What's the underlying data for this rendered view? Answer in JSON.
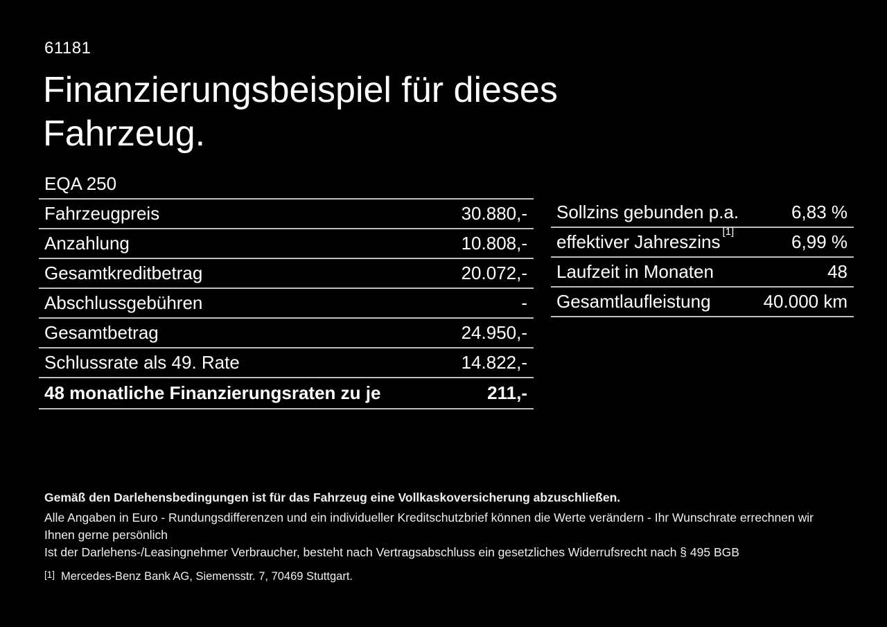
{
  "page": {
    "ref_number": "61181",
    "title": "Finanzierungsbeispiel für dieses Fahrzeug.",
    "model": "EQA 250"
  },
  "finance_table": {
    "rows": [
      {
        "label": "Fahrzeugpreis",
        "value": "30.880,-"
      },
      {
        "label": "Anzahlung",
        "value": "10.808,-"
      },
      {
        "label": "Gesamtkreditbetrag",
        "value": "20.072,-"
      },
      {
        "label": "Abschlussgebühren",
        "value": "-"
      },
      {
        "label": "Gesamtbetrag",
        "value": "24.950,-"
      },
      {
        "label": "Schlussrate als 49. Rate",
        "value": "14.822,-"
      },
      {
        "label": "48 monatliche Finanzierungsraten zu je",
        "value": "211,-"
      }
    ]
  },
  "conditions_table": {
    "rows": [
      {
        "label": "Sollzins gebunden p.a.",
        "value": "6,83 %"
      },
      {
        "label": "effektiver Jahreszins",
        "sup": "[1]",
        "value": "6,99 %"
      },
      {
        "label": "Laufzeit in Monaten",
        "value": "48"
      },
      {
        "label": "Gesamtlaufleistung",
        "value": "40.000 km"
      }
    ]
  },
  "footer": {
    "insurance_note": "Gemäß den Darlehensbedingungen ist für das Fahrzeug eine Vollkaskoversicherung abzuschließen.",
    "note_line1": "Alle Angaben in Euro - Rundungsdifferenzen und ein individueller Kreditschutzbrief können die Werte verändern - Ihr Wunschrate errechnen wir Ihnen gerne persönlich",
    "note_line2": "Ist der Darlehens-/Leasingnehmer Verbraucher, besteht nach Vertragsabschluss ein gesetzliches Widerrufsrecht nach § 495 BGB",
    "footnote_marker": "[1]",
    "footnote_text": "Mercedes-Benz Bank AG, Siemensstr. 7, 70469 Stuttgart."
  },
  "colors": {
    "background": "#000000",
    "text": "#ffffff",
    "divider": "#bfbfbf"
  }
}
